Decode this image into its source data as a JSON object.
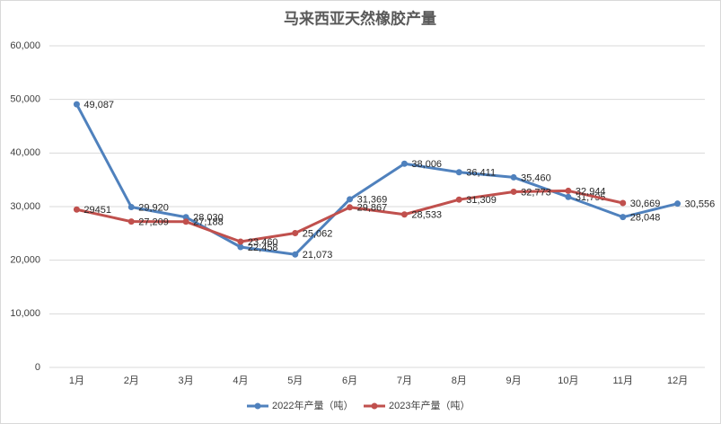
{
  "chart_data": {
    "type": "line",
    "title": "马来西亚天然橡胶产量",
    "categories": [
      "1月",
      "2月",
      "3月",
      "4月",
      "5月",
      "6月",
      "7月",
      "8月",
      "9月",
      "10月",
      "11月",
      "12月"
    ],
    "series": [
      {
        "name": "2022年产量（吨）",
        "color": "#4f81bd",
        "values": [
          49087,
          29920,
          28030,
          22458,
          21073,
          31369,
          38006,
          36411,
          35460,
          31795,
          28048,
          30556
        ],
        "value_labels": [
          "49,087",
          "29,920",
          "28,030",
          "22,458",
          "21,073",
          "31,369",
          "38,006",
          "36,411",
          "35,460",
          "31,795",
          "28,048",
          "30,556"
        ]
      },
      {
        "name": "2023年产量（吨）",
        "color": "#c0504d",
        "values": [
          29451,
          27209,
          27188,
          23460,
          25062,
          29867,
          28533,
          31309,
          32773,
          32944,
          30669,
          null
        ],
        "value_labels": [
          "29451",
          "27,209",
          "27,188",
          "23,460",
          "25,062",
          "29,867",
          "28,533",
          "31,309",
          "32,773",
          "32,944",
          "30,669",
          null
        ]
      }
    ],
    "ylim": [
      0,
      60000
    ],
    "yticks": [
      0,
      {
        "value": 10000,
        "label": "10,000"
      },
      {
        "value": 20000,
        "label": "20,000"
      },
      {
        "value": 30000,
        "label": "30,000"
      },
      {
        "value": 40000,
        "label": "40,000"
      },
      {
        "value": 50000,
        "label": "50,000"
      },
      {
        "value": 60000,
        "label": "60,000"
      }
    ],
    "grid": true,
    "legend": "bottom"
  }
}
